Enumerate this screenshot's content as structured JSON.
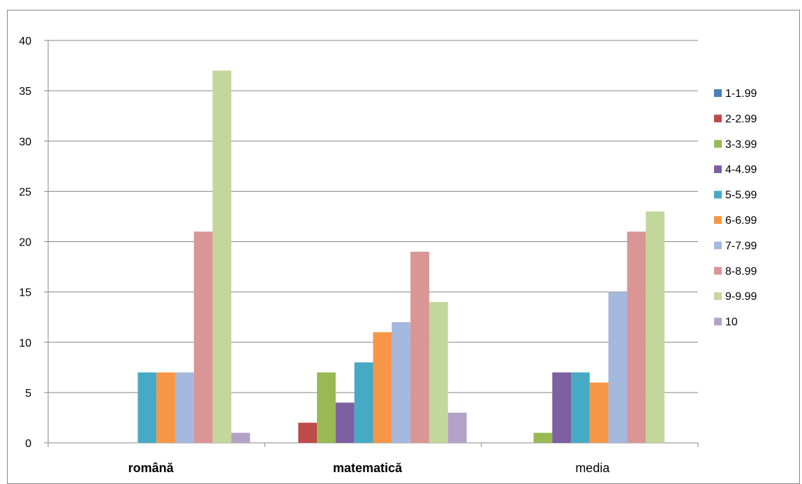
{
  "chart_data": {
    "type": "bar",
    "title": "",
    "xlabel": "",
    "ylabel": "",
    "ylim": [
      0,
      40
    ],
    "yticks": [
      0,
      5,
      10,
      15,
      20,
      25,
      30,
      35,
      40
    ],
    "grid": true,
    "legend_position": "right",
    "categories": [
      "română",
      "matematică",
      "media"
    ],
    "series": [
      {
        "name": "1-1.99",
        "color": "#4A7EBB",
        "values": [
          0,
          0,
          0
        ]
      },
      {
        "name": "2-2.99",
        "color": "#BE4B48",
        "values": [
          0,
          2,
          0
        ]
      },
      {
        "name": "3-3.99",
        "color": "#98B954",
        "values": [
          0,
          7,
          1
        ]
      },
      {
        "name": "4-4.99",
        "color": "#7D60A0",
        "values": [
          0,
          4,
          7
        ]
      },
      {
        "name": "5-5.99",
        "color": "#46AAC5",
        "values": [
          7,
          8,
          7
        ]
      },
      {
        "name": "6-6.99",
        "color": "#F79646",
        "values": [
          7,
          11,
          6
        ]
      },
      {
        "name": "7-7.99",
        "color": "#A5B8DE",
        "values": [
          7,
          12,
          15
        ]
      },
      {
        "name": "8-8.99",
        "color": "#D99694",
        "values": [
          21,
          19,
          21
        ]
      },
      {
        "name": "9-9.99",
        "color": "#C3D69B",
        "values": [
          37,
          14,
          23
        ]
      },
      {
        "name": "10",
        "color": "#B3A2C7",
        "values": [
          1,
          3,
          0
        ]
      }
    ]
  }
}
